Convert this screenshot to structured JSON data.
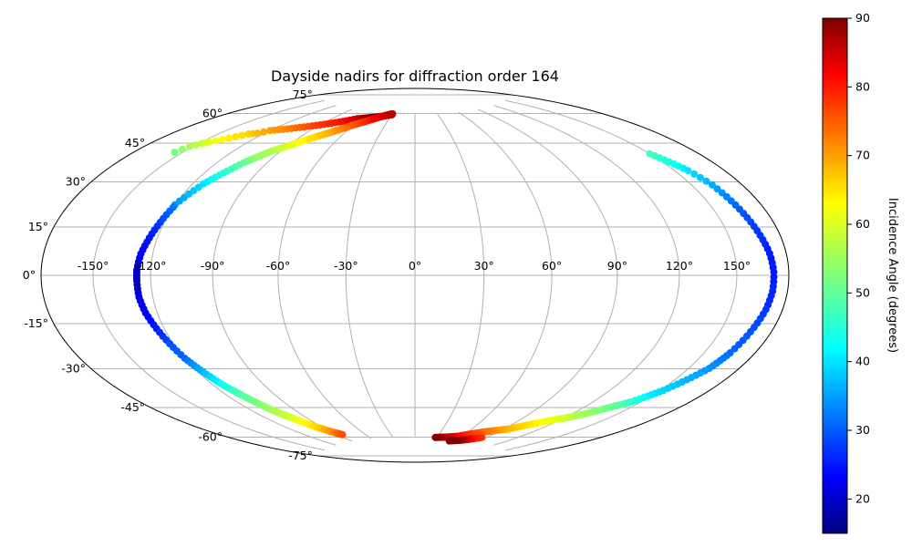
{
  "chart_data": {
    "type": "scatter",
    "projection": "hammer-aitoff",
    "title": "Dayside nadirs for diffraction order 164",
    "lon_tick_labels": [
      "-150°",
      "-120°",
      "-90°",
      "-60°",
      "-30°",
      "0°",
      "30°",
      "60°",
      "90°",
      "120°",
      "150°"
    ],
    "lon_ticks": [
      -150,
      -120,
      -90,
      -60,
      -30,
      0,
      30,
      60,
      90,
      120,
      150
    ],
    "lat_tick_labels": [
      "-75°",
      "-60°",
      "-45°",
      "-30°",
      "-15°",
      "0°",
      "15°",
      "30°",
      "45°",
      "60°",
      "75°"
    ],
    "lat_ticks": [
      -75,
      -60,
      -45,
      -30,
      -15,
      0,
      15,
      30,
      45,
      60,
      75
    ],
    "grid": true,
    "colormap": "jet",
    "colorbar": {
      "label": "Incidence Angle (degrees)",
      "range": [
        15,
        90
      ],
      "tick_values": [
        20,
        30,
        40,
        50,
        60,
        70,
        80,
        90
      ],
      "tick_labels": [
        "20",
        "30",
        "40",
        "50",
        "60",
        "70",
        "80",
        "90"
      ]
    },
    "series": [
      {
        "lon": [
          -155,
          -152,
          -148,
          -145,
          -140,
          -135,
          -130,
          -125,
          -120,
          -115,
          -110,
          -105,
          -100,
          -95,
          -90,
          -85,
          -80,
          -75,
          -70,
          -65,
          -60,
          -55,
          -50,
          -45,
          -40,
          -35,
          -30
        ],
        "lat": [
          45,
          48,
          50,
          51,
          53,
          55,
          57,
          58,
          60,
          61,
          62,
          63,
          64,
          65,
          66,
          67,
          68,
          69,
          70,
          71,
          71.5,
          72,
          72.5,
          73,
          73.5,
          74,
          74.5
        ],
        "incidence": [
          52,
          56,
          58,
          61,
          63,
          65,
          66,
          68,
          70,
          71,
          72,
          74,
          75,
          77,
          78,
          79,
          80,
          81,
          83,
          85,
          87,
          89,
          90,
          90,
          90,
          90,
          90
        ]
      },
      {
        "lon": [
          -120,
          -118,
          -116,
          -114,
          -112,
          -110,
          -108,
          -106,
          -104,
          -102,
          -100,
          -98,
          -96,
          -94,
          -92,
          -90,
          -88,
          -86,
          -84,
          -82,
          -80,
          -78,
          -76,
          -74,
          -72,
          -70,
          -68,
          -66,
          -64,
          -62,
          -60,
          -58,
          -56,
          -54,
          -52,
          -50,
          -48,
          -46,
          -44,
          -42,
          -40,
          -38,
          -36,
          -34,
          -32,
          -30
        ],
        "lat": [
          27,
          30,
          33,
          36,
          38,
          40,
          42,
          44,
          46,
          47.5,
          49,
          50.5,
          52,
          53,
          54,
          55,
          56,
          57,
          58,
          59,
          60,
          60.8,
          61.6,
          62.4,
          63.2,
          64,
          64.8,
          65.6,
          66.4,
          67.2,
          68,
          68.6,
          69.2,
          69.8,
          70.4,
          71,
          71.5,
          72,
          72.5,
          73,
          73.4,
          73.8,
          74.2,
          74.5,
          74.8,
          75
        ],
        "incidence": [
          34,
          36,
          38,
          40,
          42,
          44,
          46,
          48,
          50,
          52,
          54,
          55,
          56,
          57,
          58,
          60,
          61,
          62,
          63,
          64,
          65,
          66,
          67,
          68,
          69,
          70,
          71,
          72,
          73,
          74,
          75,
          76,
          77,
          78,
          79,
          80,
          81,
          82,
          83,
          83,
          84,
          84,
          85,
          85,
          86,
          86
        ]
      },
      {
        "lon": [
          -120,
          -121,
          -122,
          -123,
          -124,
          -125,
          -126,
          -126.5,
          -127,
          -127,
          -127,
          -127,
          -127,
          -126.5,
          -126,
          -125,
          -124,
          -123,
          -122,
          -121,
          -120,
          -119,
          -118,
          -117,
          -116,
          -115,
          -114,
          -113,
          -112,
          -111,
          -110,
          -109,
          -108,
          -107,
          -106,
          -105,
          -104,
          -103,
          -102,
          -101,
          -100,
          -99,
          -98,
          -97,
          -96,
          -95,
          -94,
          -93,
          -92,
          -91,
          -90,
          -89,
          -88,
          -87,
          -86,
          -85
        ],
        "lat": [
          26,
          23,
          20,
          17,
          14,
          11,
          8,
          5,
          2,
          0,
          -2,
          -5,
          -8,
          -11,
          -14,
          -17,
          -20,
          -23,
          -26,
          -29,
          -32,
          -34,
          -36,
          -38,
          -40,
          -42,
          -44,
          -45.5,
          -47,
          -48.5,
          -50,
          -51.5,
          -53,
          -54.5,
          -56,
          -57,
          -58,
          -59,
          -60,
          -61,
          -62,
          -63,
          -64,
          -64.8,
          -65.6,
          -66.4,
          -67,
          -67.6,
          -68.2,
          -68.8,
          -69.3,
          -69.8,
          -70.2,
          -70.6,
          -71,
          -71.4
        ],
        "incidence": [
          32,
          30,
          28,
          26,
          25,
          24,
          23,
          21,
          20,
          19,
          19,
          20,
          21,
          22,
          23,
          24,
          25,
          27,
          29,
          30,
          31,
          33,
          35,
          37,
          39,
          41,
          43,
          45,
          47,
          49,
          50,
          51,
          52,
          54,
          55,
          56,
          57,
          58,
          59,
          60,
          61,
          62,
          63,
          64,
          65,
          66,
          67,
          68,
          69,
          70,
          71,
          72,
          73,
          74,
          75,
          76
        ]
      },
      {
        "lon": [
          150,
          152,
          154,
          156,
          158,
          160,
          162,
          163,
          164,
          165,
          166,
          167,
          168,
          169,
          170,
          170.5,
          171,
          171,
          171,
          170.5,
          170,
          169,
          168,
          167,
          166,
          165,
          164,
          163,
          162,
          160,
          158,
          156,
          154,
          152,
          150,
          148,
          146,
          144,
          142,
          140,
          138,
          136,
          134,
          132,
          130,
          128,
          126,
          124,
          122,
          120
        ],
        "lat": [
          45,
          43,
          41,
          39,
          37,
          34,
          31,
          28,
          25,
          22,
          19,
          16,
          13,
          10,
          7,
          4,
          1,
          -2,
          -5,
          -8,
          -11,
          -14,
          -17,
          -20,
          -23,
          -26,
          -28,
          -30,
          -32,
          -34,
          -36,
          -38,
          -40,
          -42,
          -43.5,
          -45,
          -46.5,
          -48,
          -49,
          -50,
          -51,
          -52,
          -53,
          -54,
          -55,
          -56,
          -56.8,
          -57.6,
          -58.4,
          -59.2
        ],
        "incidence": [
          48,
          46,
          44,
          42,
          40,
          38,
          36,
          34,
          32,
          30,
          29,
          28,
          27,
          26,
          25,
          25,
          25,
          25,
          26,
          26,
          27,
          28,
          29,
          30,
          30,
          31,
          32,
          33,
          34,
          35,
          36,
          37,
          38,
          39,
          40,
          41,
          43,
          45,
          47,
          49,
          50,
          51,
          52,
          53,
          54,
          55,
          56,
          57,
          58,
          59
        ]
      },
      {
        "lon": [
          118,
          115,
          112,
          109,
          106,
          103,
          100,
          97,
          94,
          91,
          88,
          85,
          82,
          79,
          76,
          73,
          70,
          67,
          64,
          61,
          58,
          55,
          52,
          49,
          46,
          43,
          40,
          37,
          34,
          31,
          28
        ],
        "lat": [
          -59.5,
          -60.5,
          -61.5,
          -62.5,
          -63.5,
          -64.5,
          -65.5,
          -66.5,
          -67.5,
          -68,
          -68.5,
          -69,
          -69.5,
          -70,
          -70.5,
          -71,
          -71.5,
          -72,
          -72.5,
          -73,
          -73.5,
          -74,
          -74.2,
          -74.4,
          -74.6,
          -74.8,
          -75,
          -75.1,
          -75.2,
          -75.3,
          -75.4
        ],
        "incidence": [
          60,
          61,
          62,
          63,
          64,
          65,
          66,
          67,
          68,
          69,
          70,
          71,
          72,
          73,
          74,
          75,
          76,
          77,
          78,
          79,
          80,
          81,
          82,
          83,
          84,
          85,
          86,
          87,
          88,
          89,
          90
        ]
      },
      {
        "lon": [
          85,
          82,
          79,
          76,
          73,
          70,
          67,
          64,
          61,
          58,
          55,
          52
        ],
        "lat": [
          -73,
          -73.5,
          -74,
          -74.5,
          -75,
          -75.3,
          -75.6,
          -75.9,
          -76.1,
          -76.3,
          -76.5,
          -76.7
        ],
        "incidence": [
          78,
          79,
          80,
          82,
          84,
          86,
          88,
          89,
          90,
          90,
          90,
          90
        ]
      }
    ]
  }
}
